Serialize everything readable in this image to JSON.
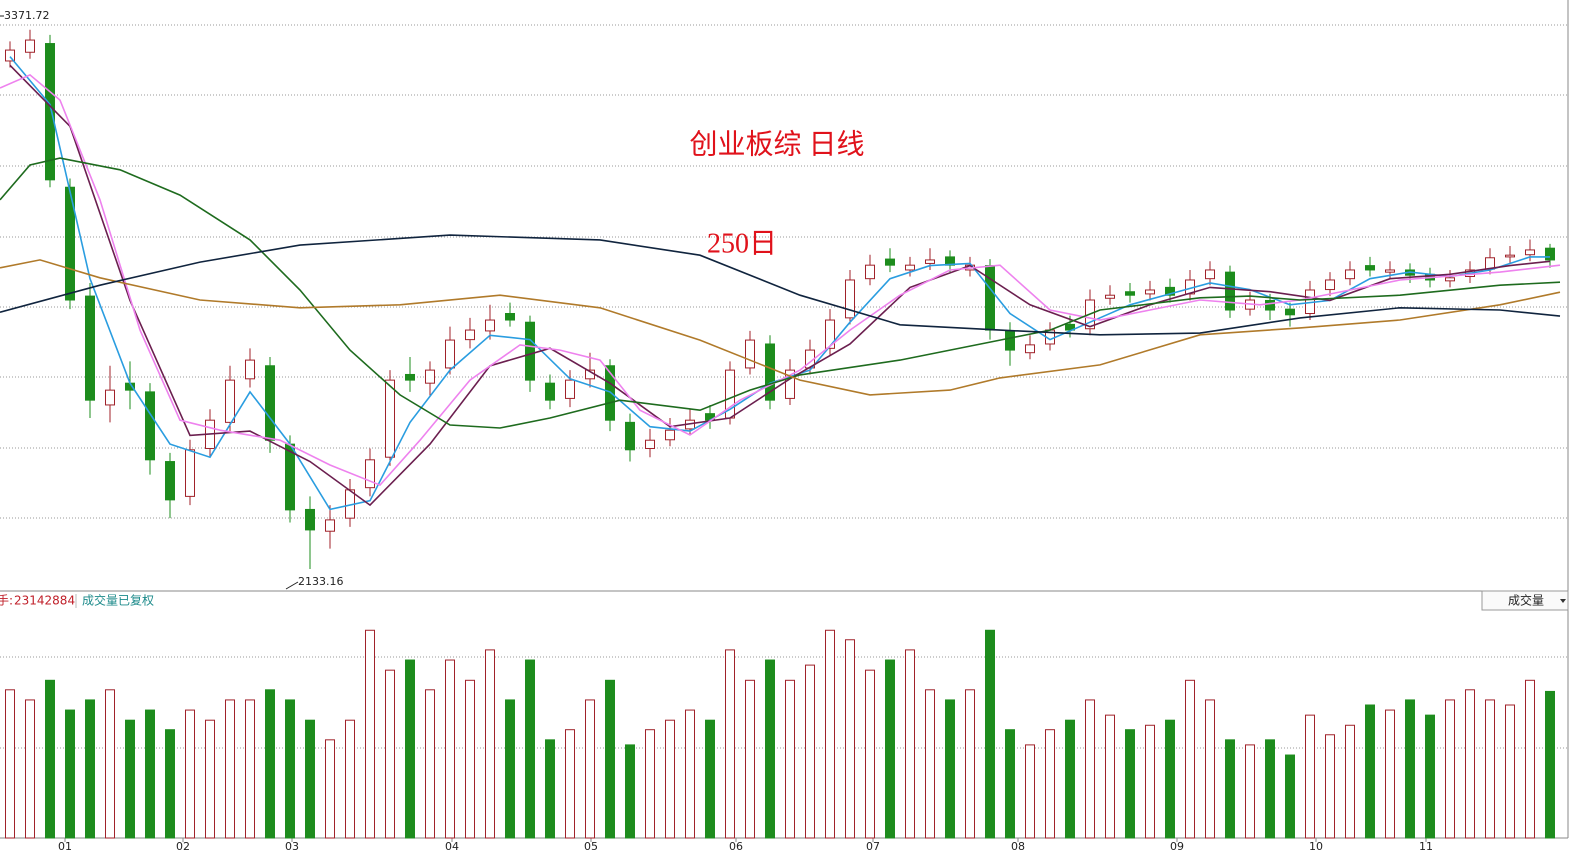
{
  "chart_data": {
    "type": "candlestick",
    "title": "创业板综 日线",
    "subtitle": "250日",
    "volume_label": "手:",
    "volume_note": "成交量已复权",
    "indicator_select": "成交量",
    "up_color": "#a0222a",
    "down_color": "#1d8c1d",
    "xlim": [
      -0.5,
      77.75
    ],
    "ylim": [
      2085,
      3440
    ],
    "volume_ylim": [
      0,
      36000000
    ],
    "xticks": [
      {
        "value": 2.75,
        "label": "01"
      },
      {
        "value": 8.65,
        "label": "02"
      },
      {
        "value": 14.1,
        "label": "03"
      },
      {
        "value": 22.1,
        "label": "04"
      },
      {
        "value": 29.05,
        "label": "05"
      },
      {
        "value": 36.3,
        "label": "06"
      },
      {
        "value": 43.15,
        "label": "07"
      },
      {
        "value": 50.4,
        "label": "08"
      },
      {
        "value": 58.35,
        "label": "09"
      },
      {
        "value": 65.3,
        "label": "10"
      },
      {
        "value": 70.8,
        "label": "11"
      }
    ],
    "candles": [
      [
        3300,
        3345,
        3285,
        3325
      ],
      [
        3320,
        3371.72,
        3305,
        3348
      ],
      [
        3340,
        3360,
        3010,
        3027
      ],
      [
        3010,
        3030,
        2730,
        2751
      ],
      [
        2760,
        2790,
        2480,
        2521
      ],
      [
        2510,
        2600,
        2470,
        2544
      ],
      [
        2560,
        2610,
        2500,
        2544
      ],
      [
        2540,
        2560,
        2350,
        2384
      ],
      [
        2380,
        2400,
        2250,
        2292
      ],
      [
        2300,
        2430,
        2280,
        2407
      ],
      [
        2410,
        2500,
        2390,
        2475
      ],
      [
        2470,
        2600,
        2450,
        2567
      ],
      [
        2570,
        2640,
        2550,
        2613
      ],
      [
        2600,
        2620,
        2400,
        2429
      ],
      [
        2420,
        2440,
        2240,
        2269
      ],
      [
        2270,
        2300,
        2133.16,
        2223
      ],
      [
        2220,
        2280,
        2180,
        2246
      ],
      [
        2250,
        2340,
        2230,
        2315
      ],
      [
        2320,
        2410,
        2300,
        2384
      ],
      [
        2390,
        2590,
        2370,
        2567
      ],
      [
        2580,
        2620,
        2540,
        2567
      ],
      [
        2560,
        2610,
        2530,
        2590
      ],
      [
        2595,
        2690,
        2580,
        2659
      ],
      [
        2660,
        2710,
        2640,
        2682
      ],
      [
        2680,
        2740,
        2660,
        2705
      ],
      [
        2720,
        2745,
        2690,
        2705
      ],
      [
        2700,
        2715,
        2540,
        2567
      ],
      [
        2560,
        2580,
        2500,
        2521
      ],
      [
        2525,
        2590,
        2505,
        2567
      ],
      [
        2570,
        2630,
        2550,
        2590
      ],
      [
        2600,
        2615,
        2450,
        2475
      ],
      [
        2470,
        2490,
        2380,
        2407
      ],
      [
        2410,
        2455,
        2390,
        2429
      ],
      [
        2430,
        2480,
        2415,
        2452
      ],
      [
        2455,
        2500,
        2440,
        2475
      ],
      [
        2490,
        2510,
        2455,
        2475
      ],
      [
        2480,
        2610,
        2465,
        2590
      ],
      [
        2595,
        2680,
        2580,
        2659
      ],
      [
        2650,
        2670,
        2500,
        2521
      ],
      [
        2525,
        2615,
        2510,
        2590
      ],
      [
        2595,
        2660,
        2580,
        2636
      ],
      [
        2640,
        2730,
        2625,
        2705
      ],
      [
        2710,
        2820,
        2695,
        2797
      ],
      [
        2800,
        2855,
        2785,
        2831
      ],
      [
        2845,
        2870,
        2815,
        2831
      ],
      [
        2820,
        2850,
        2805,
        2831
      ],
      [
        2835,
        2870,
        2820,
        2843
      ],
      [
        2850,
        2865,
        2815,
        2831
      ],
      [
        2820,
        2850,
        2805,
        2831
      ],
      [
        2830,
        2845,
        2660,
        2682
      ],
      [
        2680,
        2700,
        2600,
        2636
      ],
      [
        2630,
        2670,
        2615,
        2648
      ],
      [
        2650,
        2700,
        2635,
        2682
      ],
      [
        2695,
        2715,
        2665,
        2682
      ],
      [
        2685,
        2775,
        2670,
        2751
      ],
      [
        2755,
        2785,
        2740,
        2762
      ],
      [
        2770,
        2790,
        2745,
        2762
      ],
      [
        2765,
        2795,
        2750,
        2774
      ],
      [
        2780,
        2800,
        2745,
        2762
      ],
      [
        2765,
        2820,
        2750,
        2797
      ],
      [
        2800,
        2840,
        2785,
        2820
      ],
      [
        2815,
        2830,
        2710,
        2728
      ],
      [
        2730,
        2770,
        2715,
        2751
      ],
      [
        2750,
        2765,
        2705,
        2728
      ],
      [
        2730,
        2745,
        2690,
        2717
      ],
      [
        2720,
        2795,
        2705,
        2774
      ],
      [
        2775,
        2815,
        2760,
        2797
      ],
      [
        2800,
        2840,
        2785,
        2820
      ],
      [
        2830,
        2850,
        2805,
        2820
      ],
      [
        2815,
        2840,
        2800,
        2820
      ],
      [
        2820,
        2835,
        2790,
        2808
      ],
      [
        2810,
        2825,
        2780,
        2797
      ],
      [
        2795,
        2820,
        2780,
        2802
      ],
      [
        2805,
        2840,
        2790,
        2820
      ],
      [
        2822,
        2870,
        2810,
        2848
      ],
      [
        2850,
        2875,
        2835,
        2854
      ],
      [
        2855,
        2890,
        2840,
        2866
      ],
      [
        2870,
        2880,
        2825,
        2843
      ]
    ],
    "volumes": [
      23400000,
      21800000,
      24900000,
      20200000,
      21800000,
      23400000,
      18600000,
      20200000,
      17100000,
      20200000,
      18600000,
      21800000,
      21800000,
      23400000,
      21800000,
      18600000,
      15500000,
      18600000,
      32800000,
      26500000,
      28100000,
      23400000,
      28100000,
      24900000,
      29700000,
      21800000,
      28100000,
      15500000,
      17100000,
      21800000,
      24900000,
      14700000,
      17100000,
      18600000,
      20200000,
      18600000,
      29700000,
      24900000,
      28100000,
      24900000,
      27300000,
      32800000,
      31300000,
      26500000,
      28100000,
      29700000,
      23400000,
      21800000,
      23400000,
      32800000,
      17100000,
      14700000,
      17100000,
      18600000,
      21800000,
      19400000,
      17100000,
      17800000,
      18600000,
      24900000,
      21800000,
      15500000,
      14700000,
      15500000,
      13100000,
      19400000,
      16300000,
      17800000,
      21000000,
      20200000,
      21800000,
      19400000,
      21800000,
      23400000,
      21800000,
      21000000,
      24900000,
      23142884
    ],
    "lines": [
      {
        "color": "#2a9de0",
        "x": [
          0,
          2,
          4,
          6,
          8,
          10,
          12,
          14,
          16,
          18,
          20,
          22,
          24,
          26,
          28,
          30,
          32,
          34,
          36,
          38,
          40,
          42,
          44,
          46,
          48,
          50,
          52,
          54,
          56,
          58,
          60,
          62,
          64,
          66,
          68,
          70,
          72,
          74,
          76,
          77
        ],
        "values": [
          3310,
          3200,
          2800,
          2560,
          2420,
          2390,
          2540,
          2420,
          2270,
          2290,
          2470,
          2590,
          2670,
          2660,
          2570,
          2540,
          2460,
          2450,
          2500,
          2560,
          2590,
          2700,
          2800,
          2830,
          2835,
          2720,
          2660,
          2700,
          2740,
          2765,
          2790,
          2775,
          2740,
          2750,
          2800,
          2815,
          2805,
          2820,
          2850,
          2850
        ]
      },
      {
        "color": "#6b1f4f",
        "x": [
          0,
          3,
          6,
          9,
          12,
          15,
          18,
          21,
          24,
          27,
          30,
          33,
          36,
          39,
          42,
          45,
          48,
          51,
          54,
          57,
          60,
          63,
          66,
          69,
          72,
          75,
          77
        ],
        "values": [
          3290,
          3150,
          2750,
          2440,
          2450,
          2380,
          2280,
          2420,
          2600,
          2640,
          2560,
          2460,
          2480,
          2570,
          2650,
          2780,
          2830,
          2740,
          2690,
          2740,
          2780,
          2770,
          2750,
          2800,
          2810,
          2830,
          2840
        ]
      },
      {
        "color": "#ee82ee",
        "x": [
          -0.5,
          1,
          2.5,
          4.5,
          6.5,
          8.5,
          10.5,
          13.5,
          16,
          18.5,
          20.5,
          23,
          25.5,
          27.5,
          29.5,
          31.5,
          34,
          36.5,
          39.5,
          42,
          44.5,
          47,
          49.5,
          52,
          54.5,
          57,
          59.5,
          62.5,
          64.5,
          67,
          69.5,
          74.5,
          77.5
        ],
        "values": [
          3238,
          3268,
          3210,
          2981,
          2682,
          2475,
          2452,
          2429,
          2372,
          2326,
          2429,
          2567,
          2648,
          2636,
          2613,
          2498,
          2441,
          2521,
          2590,
          2682,
          2762,
          2820,
          2831,
          2728,
          2705,
          2728,
          2751,
          2740,
          2751,
          2774,
          2797,
          2815,
          2831
        ]
      },
      {
        "color": "#1e6b1e",
        "x": [
          -0.5,
          1,
          2.5,
          5.5,
          8.5,
          12,
          14.5,
          17,
          19.5,
          22,
          24.5,
          27,
          30.5,
          34.5,
          37,
          39.5,
          44.5,
          49.5,
          52,
          54.5,
          59.5,
          62,
          64.5,
          69.5,
          74.5,
          77.5
        ],
        "values": [
          2981,
          3061,
          3077,
          3050,
          2992,
          2889,
          2774,
          2636,
          2533,
          2464,
          2457,
          2480,
          2521,
          2498,
          2544,
          2579,
          2613,
          2659,
          2682,
          2728,
          2756,
          2760,
          2751,
          2762,
          2785,
          2792
        ]
      },
      {
        "color": "#b07a2a",
        "x": [
          -0.5,
          1.5,
          4.5,
          9.5,
          14.5,
          19.5,
          24.5,
          29.5,
          34.5,
          39.5,
          43,
          47,
          49.5,
          54.5,
          59.5,
          64.5,
          69.5,
          74.5,
          77.5
        ],
        "values": [
          2825,
          2843,
          2802,
          2751,
          2733,
          2740,
          2762,
          2733,
          2659,
          2567,
          2533,
          2544,
          2572,
          2602,
          2671,
          2687,
          2705,
          2740,
          2769
        ]
      },
      {
        "color": "#10243e",
        "x": [
          -0.5,
          4.5,
          9.5,
          14.5,
          22,
          29.5,
          34.5,
          39.5,
          44.5,
          49.5,
          54.5,
          59.5,
          64.5,
          69.5,
          74.5,
          77.5
        ],
        "values": [
          2723,
          2785,
          2838,
          2877,
          2900,
          2889,
          2854,
          2762,
          2694,
          2682,
          2671,
          2675,
          2710,
          2733,
          2728,
          2714
        ]
      }
    ]
  }
}
